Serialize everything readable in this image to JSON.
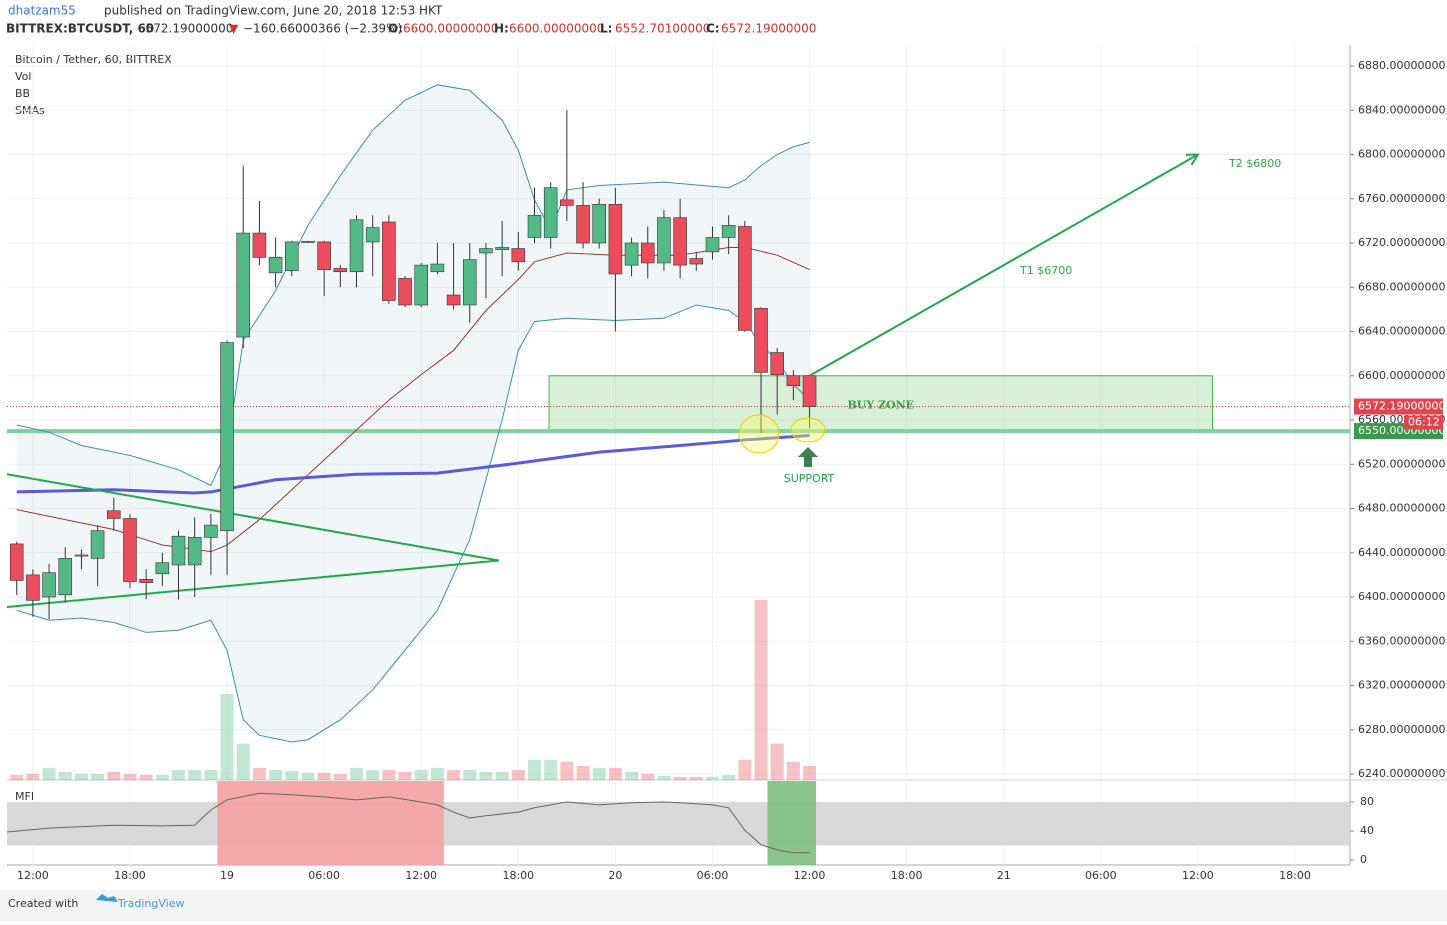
{
  "header": {
    "author": "dhatzam55",
    "published": "published on TradingView.com, June 20, 2018 12:53 HKT",
    "symbol": "BITTREX:BTCUSDT, 60",
    "price": "6572.19000000",
    "arrow": "▼",
    "change": "−160.66000366 (−2.39%)",
    "ohlc": [
      {
        "key": "O:",
        "value": "6600.00000000"
      },
      {
        "key": "H:",
        "value": "6600.00000000"
      },
      {
        "key": "L:",
        "value": "6552.70100000"
      },
      {
        "key": "C:",
        "value": "6572.19000000"
      }
    ]
  },
  "legend": [
    "Bitcoin / Tether, 60, BITTREX",
    "Vol",
    "BB",
    "SMAs"
  ],
  "footer": {
    "created": "Created with",
    "brand": "TradingView"
  },
  "chart_data": {
    "type": "candlestick",
    "up_color": "#53b987",
    "down_color": "#eb4d5c",
    "xlim": [
      -1.6,
      81.4
    ],
    "xticks": [
      {
        "value": 0,
        "label": "12:00"
      },
      {
        "value": 6,
        "label": "18:00"
      },
      {
        "value": 12,
        "label": "19"
      },
      {
        "value": 18,
        "label": "06:00"
      },
      {
        "value": 24,
        "label": "12:00"
      },
      {
        "value": 30,
        "label": "18:00"
      },
      {
        "value": 36,
        "label": "20"
      },
      {
        "value": 42,
        "label": "06:00"
      },
      {
        "value": 48,
        "label": "12:00"
      },
      {
        "value": 54,
        "label": "18:00"
      },
      {
        "value": 60,
        "label": "21"
      },
      {
        "value": 66,
        "label": "06:00"
      },
      {
        "value": 72,
        "label": "12:00"
      },
      {
        "value": 78,
        "label": "18:00"
      }
    ],
    "ylim": [
      6234.6,
      6899
    ],
    "yticks": [
      {
        "value": 6240,
        "label": "6240.00000000"
      },
      {
        "value": 6280,
        "label": "6280.00000000"
      },
      {
        "value": 6320,
        "label": "6320.00000000"
      },
      {
        "value": 6360,
        "label": "6360.00000000"
      },
      {
        "value": 6400,
        "label": "6400.00000000"
      },
      {
        "value": 6440,
        "label": "6440.00000000"
      },
      {
        "value": 6480,
        "label": "6480.00000000"
      },
      {
        "value": 6520,
        "label": "6520.00000000"
      },
      {
        "value": 6560,
        "label": "6560.00000000"
      },
      {
        "value": 6600,
        "label": "6600.00000000"
      },
      {
        "value": 6640,
        "label": "6640.00000000"
      },
      {
        "value": 6680,
        "label": "6680.00000000"
      },
      {
        "value": 6720,
        "label": "6720.00000000"
      },
      {
        "value": 6760,
        "label": "6760.00000000"
      },
      {
        "value": 6800,
        "label": "6800.00000000"
      },
      {
        "value": 6840,
        "label": "6840.00000000"
      },
      {
        "value": 6880,
        "label": "6880.00000000"
      }
    ],
    "grid": true,
    "x": [
      -1,
      0,
      1,
      2,
      3,
      4,
      5,
      6,
      7,
      8,
      9,
      10,
      11,
      12,
      13,
      14,
      15,
      16,
      17,
      18,
      19,
      20,
      21,
      22,
      23,
      24,
      25,
      26,
      27,
      28,
      29,
      30,
      31,
      32,
      33,
      34,
      35,
      36,
      37,
      38,
      39,
      40,
      41,
      42,
      43,
      44,
      45,
      46,
      47,
      48
    ],
    "open": [
      6448,
      6420,
      6400,
      6402,
      6437,
      6435,
      6478,
      6471,
      6416,
      6421,
      6429,
      6429,
      6454,
      6460,
      6635,
      6729,
      6693,
      6695,
      6721,
      6721,
      6697,
      6694,
      6721,
      6739,
      6688,
      6664,
      6694,
      6673,
      6664,
      6711,
      6714,
      6715,
      6725,
      6725,
      6759,
      6754,
      6720,
      6755,
      6700,
      6720,
      6702,
      6743,
      6706,
      6712,
      6725,
      6735,
      6661,
      6621,
      6600,
      6600
    ],
    "high": [
      6450,
      6425,
      6430,
      6445,
      6443,
      6465,
      6490,
      6475,
      6425,
      6440,
      6460,
      6472,
      6475,
      6632,
      6790,
      6758,
      6725,
      6722,
      6722,
      6722,
      6700,
      6745,
      6745,
      6745,
      6690,
      6702,
      6720,
      6720,
      6720,
      6720,
      6740,
      6730,
      6770,
      6775,
      6840,
      6775,
      6760,
      6770,
      6725,
      6735,
      6750,
      6760,
      6712,
      6735,
      6745,
      6740,
      6662,
      6625,
      6605,
      6600
    ],
    "low": [
      6402,
      6382,
      6380,
      6395,
      6425,
      6410,
      6460,
      6408,
      6398,
      6410,
      6398,
      6400,
      6420,
      6420,
      6625,
      6700,
      6680,
      6690,
      6720,
      6672,
      6680,
      6680,
      6690,
      6665,
      6662,
      6662,
      6692,
      6660,
      6648,
      6670,
      6690,
      6695,
      6720,
      6715,
      6740,
      6715,
      6715,
      6640,
      6690,
      6688,
      6695,
      6688,
      6695,
      6705,
      6710,
      6640,
      6548,
      6565,
      6578,
      6552.7
    ],
    "close": [
      6415,
      6397,
      6422,
      6435,
      6438,
      6460,
      6471,
      6414,
      6413,
      6431,
      6455,
      6454,
      6465,
      6630,
      6729,
      6707,
      6707,
      6721,
      6721.5,
      6696,
      6694,
      6741,
      6734,
      6668,
      6664,
      6700,
      6701,
      6664,
      6705,
      6715,
      6716,
      6703,
      6745,
      6770,
      6754,
      6720,
      6755,
      6692,
      6720,
      6702,
      6743,
      6700,
      6701,
      6725,
      6736,
      6641,
      6603,
      6601,
      6591,
      6572.19
    ],
    "volume": [
      5,
      6,
      12,
      8,
      6,
      6,
      8,
      6,
      5,
      5,
      10,
      10,
      10,
      85,
      36,
      12,
      10,
      9,
      7,
      7,
      6,
      12,
      10,
      10,
      8,
      10,
      12,
      10,
      10,
      8,
      8,
      10,
      20,
      20,
      18,
      14,
      12,
      12,
      8,
      6,
      4,
      3,
      3,
      3,
      5,
      20,
      178,
      36,
      18,
      14
    ],
    "lines": [
      {
        "color": "#3d8fa8",
        "x": [
          -1,
          1,
          3,
          6,
          9,
          11,
          12,
          13,
          15,
          17,
          19,
          21,
          23,
          25,
          27,
          29,
          30,
          31,
          32,
          33,
          35,
          39,
          43,
          44,
          45,
          46,
          47,
          48
        ],
        "values": [
          6555.5,
          6549,
          6537,
          6528,
          6515,
          6501,
          6533,
          6632,
          6677,
          6736,
          6781,
          6822,
          6849,
          6863,
          6858,
          6831,
          6804,
          6759,
          6732,
          6768,
          6772,
          6775,
          6770,
          6777,
          6790,
          6800,
          6807,
          6811
        ]
      },
      {
        "color": "#3d8fa8",
        "x": [
          -1,
          1,
          3,
          5,
          7,
          9,
          11,
          12,
          13,
          14,
          16,
          17,
          19,
          21,
          23,
          25,
          27,
          28,
          29,
          30,
          31,
          33,
          36,
          39,
          41,
          43,
          44,
          45,
          46,
          47,
          48
        ],
        "values": [
          6388,
          6379,
          6381,
          6377,
          6368,
          6370,
          6379,
          6352,
          6289,
          6275,
          6269,
          6271,
          6289,
          6316,
          6352,
          6388,
          6452,
          6506,
          6560,
          6623,
          6649,
          6652,
          6650,
          6652,
          6664,
          6659,
          6649,
          6628,
          6614,
          6592,
          6578
        ]
      },
      {
        "color": "#a0342c",
        "x": [
          -1,
          2,
          5,
          8,
          11,
          12,
          14,
          16,
          18,
          20,
          22,
          24,
          26,
          28,
          30,
          31,
          33,
          36,
          40,
          43,
          44,
          46,
          48
        ],
        "values": [
          6479,
          6470,
          6461,
          6447,
          6441,
          6447,
          6470,
          6497,
          6524,
          6551,
          6578,
          6601,
          6623,
          6659,
          6687,
          6703,
          6711,
          6709,
          6709,
          6716,
          6716,
          6709,
          6696
        ]
      },
      {
        "color": "#5b5bd6",
        "x": [
          -1,
          5,
          10,
          11,
          15,
          20,
          25,
          30,
          35,
          40,
          44,
          48
        ],
        "values": [
          6495,
          6497,
          6494,
          6495,
          6506,
          6511,
          6512,
          6521,
          6531,
          6537,
          6542,
          6546
        ]
      }
    ],
    "triangle": {
      "color": "#22a84a",
      "upper": [
        6511,
        6433
      ],
      "lower": [
        6391,
        6433
      ],
      "x": [
        -1.6,
        28.8
      ]
    },
    "buy_zone": {
      "x": [
        31.9,
        72.9
      ],
      "y": [
        6550,
        6600
      ],
      "label": "BUY ZONE"
    },
    "support": {
      "value": 6550,
      "label": "SUPPORT",
      "tag": "6550.00000000"
    },
    "last_price": {
      "value": 6572.19,
      "label": "6572.19000000",
      "countdown": "06:12"
    },
    "target_arrow": {
      "x": [
        48,
        72
      ],
      "y": [
        6600,
        6800
      ]
    },
    "targets": [
      "T1 $6700",
      "T2 $6800"
    ],
    "mfi": {
      "label": "MFI",
      "ylim": [
        -6.9,
        106.2
      ],
      "yticks": [
        0,
        40,
        80
      ],
      "band": [
        20,
        80
      ],
      "x": [
        -1.6,
        1,
        5,
        8,
        10,
        11,
        12,
        14,
        16,
        18,
        20,
        22,
        24,
        25,
        26,
        27,
        28,
        30,
        31,
        33,
        35,
        37,
        39,
        40,
        42,
        43,
        44,
        45,
        46,
        47,
        48
      ],
      "values": [
        38.6,
        44,
        48,
        47,
        48,
        69,
        83,
        92,
        90,
        87,
        83,
        87,
        80,
        76,
        66,
        58,
        61,
        66,
        72,
        80,
        76,
        79,
        80,
        79,
        76,
        72,
        41,
        21,
        14,
        10,
        10
      ],
      "zones": [
        {
          "x": [
            11.4,
            25.4
          ],
          "color": "#f4a0a0"
        },
        {
          "x": [
            45.4,
            48.4
          ],
          "color": "#7fbf7f"
        }
      ]
    }
  }
}
